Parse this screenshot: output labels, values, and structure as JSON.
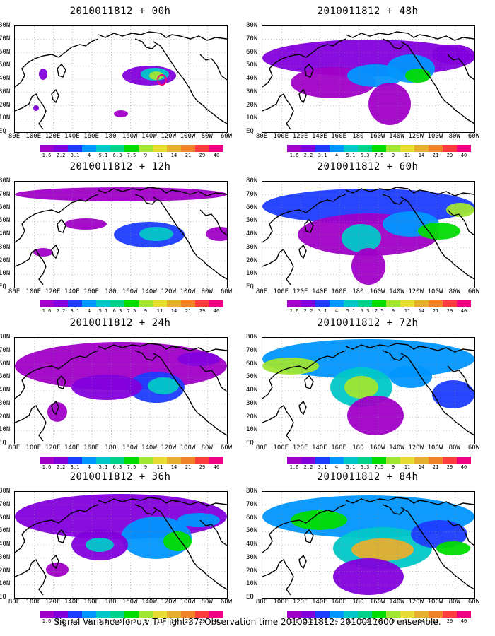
{
  "caption": "Signal Variance for u,v,T. Flight 37. Observation time 2010011812. 2010011600 ensemble.",
  "panels": [
    {
      "title": "2010011812 + 00h"
    },
    {
      "title": "2010011812 + 48h"
    },
    {
      "title": "2010011812 + 12h"
    },
    {
      "title": "2010011812 + 60h"
    },
    {
      "title": "2010011812 + 24h"
    },
    {
      "title": "2010011812 + 72h"
    },
    {
      "title": "2010011812 + 36h"
    },
    {
      "title": "2010011812 + 84h"
    }
  ],
  "axes": {
    "lat_labels": [
      "80N",
      "70N",
      "60N",
      "50N",
      "40N",
      "30N",
      "20N",
      "10N",
      "EQ"
    ],
    "lon_labels": [
      "80E",
      "100E",
      "120E",
      "140E",
      "160E",
      "180",
      "160W",
      "140W",
      "120W",
      "100W",
      "80W",
      "60W"
    ]
  },
  "colorbar": {
    "labels": [
      "1.6",
      "2.2",
      "3.1",
      "4",
      "5.1",
      "6.3",
      "7.5",
      "9",
      "11",
      "14",
      "21",
      "29",
      "40"
    ],
    "colors": [
      "#a000c8",
      "#8200dc",
      "#1e3cff",
      "#0096ff",
      "#00c8c8",
      "#00d28c",
      "#00dc00",
      "#a0e632",
      "#e6dc32",
      "#e6af2d",
      "#f08228",
      "#fa3c3c",
      "#f00082"
    ]
  }
}
